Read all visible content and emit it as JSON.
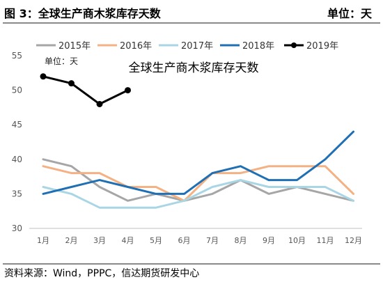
{
  "header": {
    "title": "图 3：全球生产商木浆库存天数",
    "unit": "单位：天"
  },
  "footer": {
    "source": "资料来源：Wind，PPPC，信达期货研发中心"
  },
  "chart_data": {
    "type": "line",
    "title": "全球生产商木浆库存天数",
    "unit_label": "单位：天",
    "categories": [
      "1月",
      "2月",
      "3月",
      "4月",
      "5月",
      "6月",
      "7月",
      "8月",
      "9月",
      "10月",
      "11月",
      "12月"
    ],
    "ylim": [
      30,
      55
    ],
    "yticks": [
      30,
      35,
      40,
      45,
      50,
      55
    ],
    "grid": false,
    "legend_position": "top",
    "series": [
      {
        "name": "2015年",
        "color": "#a6a6a6",
        "marker": false,
        "values": [
          40,
          39,
          36,
          34,
          35,
          34,
          35,
          37,
          35,
          36,
          35,
          34
        ]
      },
      {
        "name": "2016年",
        "color": "#f4b183",
        "marker": false,
        "values": [
          39,
          38,
          38,
          36,
          36,
          34,
          38,
          38,
          39,
          39,
          39,
          35
        ]
      },
      {
        "name": "2017年",
        "color": "#a9d6e5",
        "marker": false,
        "values": [
          36,
          35,
          33,
          33,
          33,
          34,
          36,
          37,
          36,
          36,
          36,
          34
        ]
      },
      {
        "name": "2018年",
        "color": "#1f6fb4",
        "marker": false,
        "values": [
          35,
          36,
          37,
          36,
          35,
          35,
          38,
          39,
          37,
          37,
          40,
          44
        ]
      },
      {
        "name": "2019年",
        "color": "#000000",
        "marker": true,
        "values": [
          52,
          51,
          48,
          50,
          null,
          null,
          null,
          null,
          null,
          null,
          null,
          null
        ]
      }
    ]
  }
}
